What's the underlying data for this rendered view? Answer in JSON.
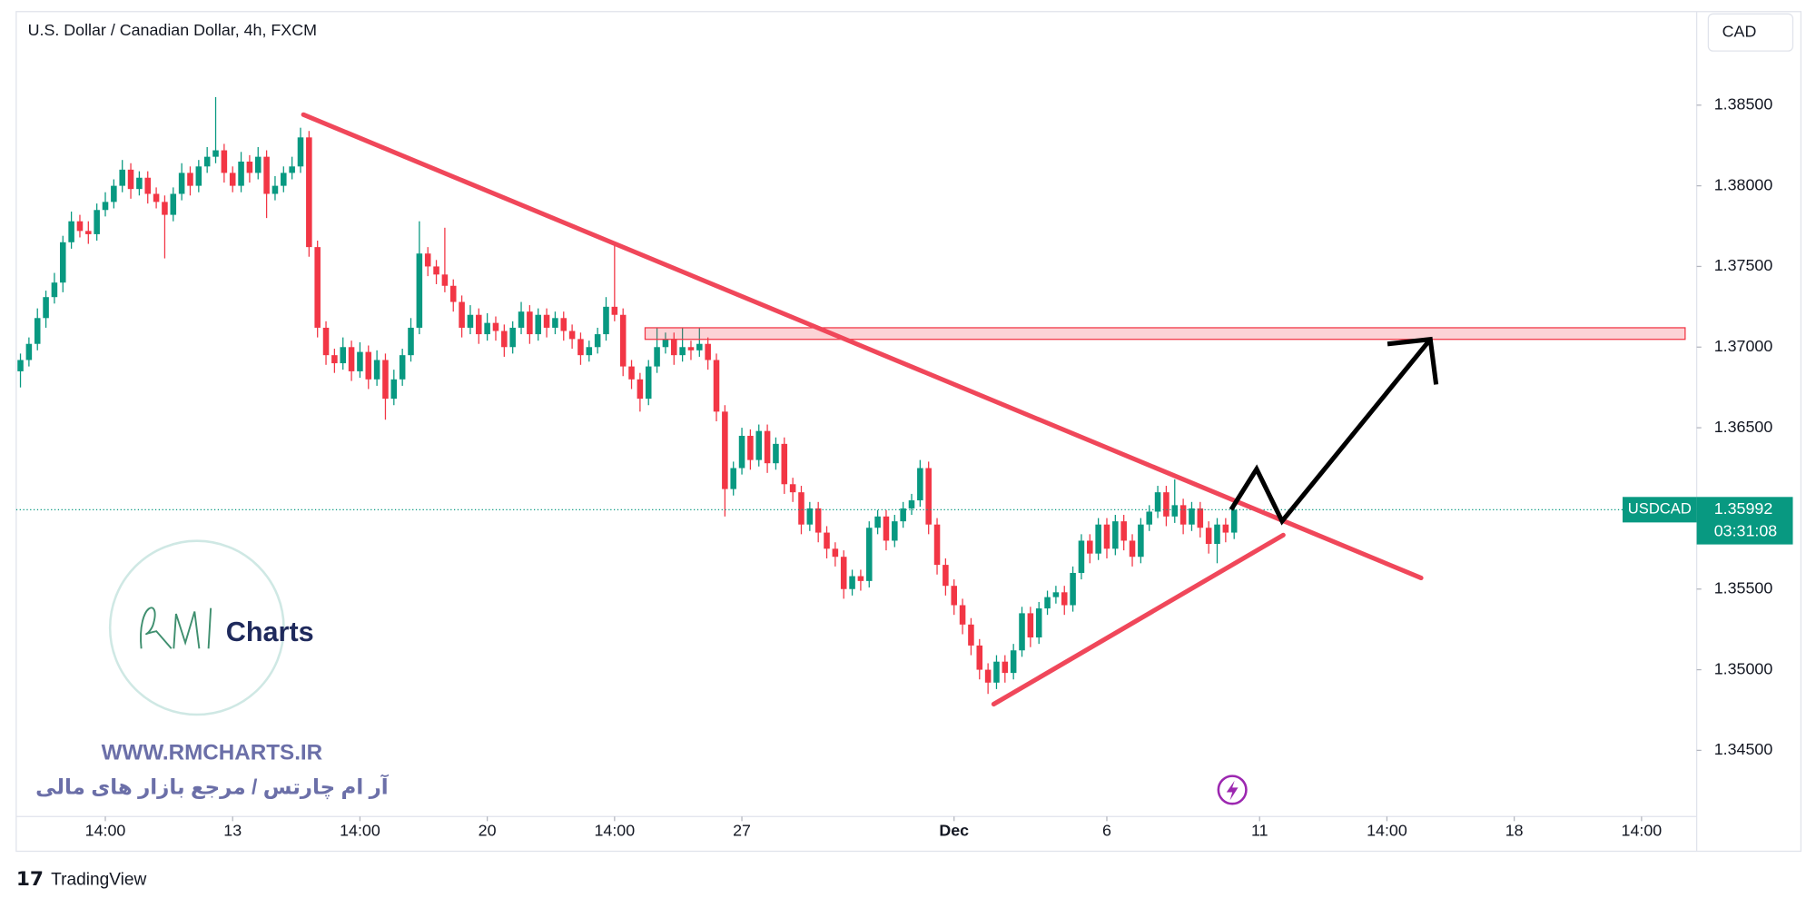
{
  "chart_data": {
    "type": "candlestick",
    "title": "U.S. Dollar / Canadian Dollar, 4h, FXCM",
    "currency": "CAD",
    "symbol": "USDCAD",
    "countdown": "03:31:08",
    "up_color": "#089981",
    "down_color": "#f23645",
    "grid": false,
    "ylim": [
      1.3409,
      1.3908
    ],
    "yticks": [
      {
        "value": 1.345,
        "label": "1.34500"
      },
      {
        "value": 1.35,
        "label": "1.35000"
      },
      {
        "value": 1.355,
        "label": "1.35500"
      },
      {
        "value": 1.36,
        "label": "1.36000"
      },
      {
        "value": 1.365,
        "label": "1.36500"
      },
      {
        "value": 1.37,
        "label": "1.37000"
      },
      {
        "value": 1.375,
        "label": "1.37500"
      },
      {
        "value": 1.38,
        "label": "1.38000"
      },
      {
        "value": 1.385,
        "label": "1.38500"
      }
    ],
    "xlim": [
      -0.5,
      197.5
    ],
    "xticks": [
      {
        "value": 10,
        "label": "14:00"
      },
      {
        "value": 25,
        "label": "13"
      },
      {
        "value": 40,
        "label": "14:00"
      },
      {
        "value": 55,
        "label": "20"
      },
      {
        "value": 70,
        "label": "14:00"
      },
      {
        "value": 85,
        "label": "27"
      },
      {
        "value": 110,
        "label": "Dec"
      },
      {
        "value": 128,
        "label": "6"
      },
      {
        "value": 146,
        "label": "11"
      },
      {
        "value": 161,
        "label": "14:00"
      },
      {
        "value": 176,
        "label": "18"
      },
      {
        "value": 191,
        "label": "14:00"
      }
    ],
    "candles": [
      [
        1.3685,
        1.3696,
        1.3675,
        1.3692
      ],
      [
        1.3692,
        1.3706,
        1.3688,
        1.3702
      ],
      [
        1.3702,
        1.3724,
        1.3698,
        1.3718
      ],
      [
        1.3718,
        1.3735,
        1.3712,
        1.3731
      ],
      [
        1.3731,
        1.3746,
        1.3727,
        1.374
      ],
      [
        1.374,
        1.3769,
        1.3734,
        1.3765
      ],
      [
        1.3765,
        1.3784,
        1.3761,
        1.3778
      ],
      [
        1.3778,
        1.3782,
        1.3768,
        1.3772
      ],
      [
        1.3772,
        1.3778,
        1.3764,
        1.377
      ],
      [
        1.377,
        1.3789,
        1.3766,
        1.3785
      ],
      [
        1.3785,
        1.3796,
        1.3781,
        1.379
      ],
      [
        1.379,
        1.3804,
        1.3786,
        1.38
      ],
      [
        1.38,
        1.3816,
        1.3796,
        1.381
      ],
      [
        1.381,
        1.3814,
        1.3792,
        1.3798
      ],
      [
        1.3798,
        1.3809,
        1.3794,
        1.3805
      ],
      [
        1.3805,
        1.3809,
        1.3789,
        1.3795
      ],
      [
        1.3795,
        1.3799,
        1.3786,
        1.379
      ],
      [
        1.379,
        1.3794,
        1.3755,
        1.3782
      ],
      [
        1.3782,
        1.3799,
        1.3778,
        1.3795
      ],
      [
        1.3795,
        1.3814,
        1.3791,
        1.3808
      ],
      [
        1.3808,
        1.3812,
        1.3794,
        1.38
      ],
      [
        1.38,
        1.3816,
        1.3796,
        1.3812
      ],
      [
        1.3812,
        1.3824,
        1.3808,
        1.3818
      ],
      [
        1.3818,
        1.3855,
        1.3814,
        1.3822
      ],
      [
        1.3822,
        1.3826,
        1.3802,
        1.3808
      ],
      [
        1.3808,
        1.3812,
        1.3796,
        1.38
      ],
      [
        1.38,
        1.3821,
        1.3796,
        1.3815
      ],
      [
        1.3815,
        1.3819,
        1.3802,
        1.3808
      ],
      [
        1.3808,
        1.3824,
        1.3804,
        1.3818
      ],
      [
        1.3818,
        1.3822,
        1.378,
        1.3795
      ],
      [
        1.3795,
        1.3806,
        1.3791,
        1.38
      ],
      [
        1.38,
        1.3812,
        1.3796,
        1.3808
      ],
      [
        1.3808,
        1.3818,
        1.3804,
        1.3812
      ],
      [
        1.3812,
        1.3836,
        1.3808,
        1.383
      ],
      [
        1.383,
        1.3834,
        1.3756,
        1.3762
      ],
      [
        1.3762,
        1.3766,
        1.3706,
        1.3712
      ],
      [
        1.3712,
        1.3716,
        1.3689,
        1.3695
      ],
      [
        1.3695,
        1.3699,
        1.3684,
        1.369
      ],
      [
        1.369,
        1.3706,
        1.3686,
        1.37
      ],
      [
        1.37,
        1.3704,
        1.3679,
        1.3685
      ],
      [
        1.3685,
        1.3703,
        1.3681,
        1.3697
      ],
      [
        1.3697,
        1.3701,
        1.3674,
        1.368
      ],
      [
        1.368,
        1.3698,
        1.3676,
        1.3692
      ],
      [
        1.3692,
        1.3696,
        1.3655,
        1.3668
      ],
      [
        1.3668,
        1.3686,
        1.3664,
        1.368
      ],
      [
        1.368,
        1.3699,
        1.3676,
        1.3695
      ],
      [
        1.3695,
        1.3718,
        1.3691,
        1.3712
      ],
      [
        1.3712,
        1.3778,
        1.3708,
        1.3758
      ],
      [
        1.3758,
        1.3762,
        1.3744,
        1.375
      ],
      [
        1.375,
        1.3754,
        1.3739,
        1.3745
      ],
      [
        1.3745,
        1.3774,
        1.3734,
        1.3738
      ],
      [
        1.3738,
        1.3742,
        1.3722,
        1.3728
      ],
      [
        1.3728,
        1.3732,
        1.3706,
        1.3712
      ],
      [
        1.3712,
        1.3726,
        1.3708,
        1.372
      ],
      [
        1.372,
        1.3724,
        1.3702,
        1.3708
      ],
      [
        1.3708,
        1.3721,
        1.3704,
        1.3715
      ],
      [
        1.3715,
        1.3719,
        1.3704,
        1.371
      ],
      [
        1.371,
        1.3714,
        1.3694,
        1.37
      ],
      [
        1.37,
        1.3716,
        1.3696,
        1.3712
      ],
      [
        1.3712,
        1.3728,
        1.3708,
        1.3722
      ],
      [
        1.3722,
        1.3726,
        1.3702,
        1.3708
      ],
      [
        1.3708,
        1.3724,
        1.3704,
        1.372
      ],
      [
        1.372,
        1.3724,
        1.3706,
        1.3712
      ],
      [
        1.3712,
        1.3722,
        1.3708,
        1.3718
      ],
      [
        1.3718,
        1.3722,
        1.3704,
        1.371
      ],
      [
        1.371,
        1.3714,
        1.3699,
        1.3705
      ],
      [
        1.3705,
        1.3709,
        1.3689,
        1.3695
      ],
      [
        1.3695,
        1.3704,
        1.3691,
        1.37
      ],
      [
        1.37,
        1.3712,
        1.3696,
        1.3708
      ],
      [
        1.3708,
        1.3731,
        1.3704,
        1.3725
      ],
      [
        1.3725,
        1.3765,
        1.3716,
        1.372
      ],
      [
        1.372,
        1.3724,
        1.3682,
        1.3688
      ],
      [
        1.3688,
        1.3692,
        1.3674,
        1.368
      ],
      [
        1.368,
        1.3684,
        1.366,
        1.3668
      ],
      [
        1.3668,
        1.3692,
        1.3664,
        1.3688
      ],
      [
        1.3688,
        1.3712,
        1.3684,
        1.37
      ],
      [
        1.37,
        1.3709,
        1.3696,
        1.3705
      ],
      [
        1.3705,
        1.3709,
        1.3689,
        1.3695
      ],
      [
        1.3695,
        1.3712,
        1.3691,
        1.37
      ],
      [
        1.37,
        1.3704,
        1.3692,
        1.3698
      ],
      [
        1.3698,
        1.3712,
        1.3694,
        1.3702
      ],
      [
        1.3702,
        1.3706,
        1.3686,
        1.3692
      ],
      [
        1.3692,
        1.3696,
        1.3654,
        1.366
      ],
      [
        1.366,
        1.3664,
        1.3595,
        1.3612
      ],
      [
        1.3612,
        1.3629,
        1.3608,
        1.3625
      ],
      [
        1.3625,
        1.365,
        1.3621,
        1.3645
      ],
      [
        1.3645,
        1.3649,
        1.3624,
        1.363
      ],
      [
        1.363,
        1.3652,
        1.3626,
        1.3648
      ],
      [
        1.3648,
        1.3652,
        1.3622,
        1.3628
      ],
      [
        1.3628,
        1.3644,
        1.3624,
        1.364
      ],
      [
        1.364,
        1.3644,
        1.3609,
        1.3615
      ],
      [
        1.3615,
        1.3619,
        1.3604,
        1.361
      ],
      [
        1.361,
        1.3614,
        1.3584,
        1.359
      ],
      [
        1.359,
        1.3604,
        1.3586,
        1.36
      ],
      [
        1.36,
        1.3604,
        1.3579,
        1.3585
      ],
      [
        1.3585,
        1.3589,
        1.3569,
        1.3575
      ],
      [
        1.3575,
        1.3579,
        1.3564,
        1.357
      ],
      [
        1.357,
        1.3574,
        1.3544,
        1.355
      ],
      [
        1.355,
        1.3562,
        1.3546,
        1.3558
      ],
      [
        1.3558,
        1.3562,
        1.3549,
        1.3555
      ],
      [
        1.3555,
        1.3592,
        1.3551,
        1.3588
      ],
      [
        1.3588,
        1.3599,
        1.3584,
        1.3595
      ],
      [
        1.3595,
        1.3599,
        1.3574,
        1.358
      ],
      [
        1.358,
        1.3596,
        1.3576,
        1.3592
      ],
      [
        1.3592,
        1.3604,
        1.3588,
        1.36
      ],
      [
        1.36,
        1.3609,
        1.3596,
        1.3605
      ],
      [
        1.3605,
        1.363,
        1.3601,
        1.3625
      ],
      [
        1.3625,
        1.3629,
        1.3584,
        1.359
      ],
      [
        1.359,
        1.3594,
        1.3559,
        1.3565
      ],
      [
        1.3565,
        1.3569,
        1.3546,
        1.3552
      ],
      [
        1.3552,
        1.3556,
        1.3534,
        1.354
      ],
      [
        1.354,
        1.3544,
        1.3522,
        1.3528
      ],
      [
        1.3528,
        1.3532,
        1.3509,
        1.3515
      ],
      [
        1.3515,
        1.3519,
        1.3494,
        1.35
      ],
      [
        1.35,
        1.3504,
        1.3485,
        1.3492
      ],
      [
        1.3492,
        1.3509,
        1.3488,
        1.3505
      ],
      [
        1.3505,
        1.3509,
        1.3492,
        1.3498
      ],
      [
        1.3498,
        1.3516,
        1.3494,
        1.3512
      ],
      [
        1.3512,
        1.3539,
        1.3508,
        1.3535
      ],
      [
        1.3535,
        1.3539,
        1.3514,
        1.352
      ],
      [
        1.352,
        1.3542,
        1.3516,
        1.3538
      ],
      [
        1.3538,
        1.3549,
        1.3534,
        1.3545
      ],
      [
        1.3545,
        1.3552,
        1.3541,
        1.3548
      ],
      [
        1.3548,
        1.3552,
        1.3534,
        1.354
      ],
      [
        1.354,
        1.3564,
        1.3536,
        1.356
      ],
      [
        1.356,
        1.3584,
        1.3556,
        1.358
      ],
      [
        1.358,
        1.3584,
        1.3566,
        1.3572
      ],
      [
        1.3572,
        1.3594,
        1.3568,
        1.359
      ],
      [
        1.359,
        1.3594,
        1.3569,
        1.3575
      ],
      [
        1.3575,
        1.3596,
        1.3571,
        1.3592
      ],
      [
        1.3592,
        1.3596,
        1.3574,
        1.358
      ],
      [
        1.358,
        1.3584,
        1.3564,
        1.357
      ],
      [
        1.357,
        1.3594,
        1.3566,
        1.359
      ],
      [
        1.359,
        1.3602,
        1.3586,
        1.3598
      ],
      [
        1.3598,
        1.3614,
        1.3594,
        1.361
      ],
      [
        1.361,
        1.3614,
        1.3589,
        1.3595
      ],
      [
        1.3595,
        1.3618,
        1.3591,
        1.3602
      ],
      [
        1.3602,
        1.3606,
        1.3584,
        1.359
      ],
      [
        1.359,
        1.3604,
        1.3586,
        1.36
      ],
      [
        1.36,
        1.3604,
        1.3582,
        1.3588
      ],
      [
        1.3588,
        1.3592,
        1.3572,
        1.3578
      ],
      [
        1.3578,
        1.3594,
        1.3566,
        1.359
      ],
      [
        1.359,
        1.3594,
        1.3579,
        1.3585
      ],
      [
        1.3585,
        1.36032,
        1.3581,
        1.35992
      ]
    ],
    "watermark": {
      "brand": "Charts",
      "url": "WWW.RMCHARTS.IR",
      "tagline": "آر ام چارتس / مرجع بازار های مالی"
    },
    "footer": "TradingView"
  }
}
